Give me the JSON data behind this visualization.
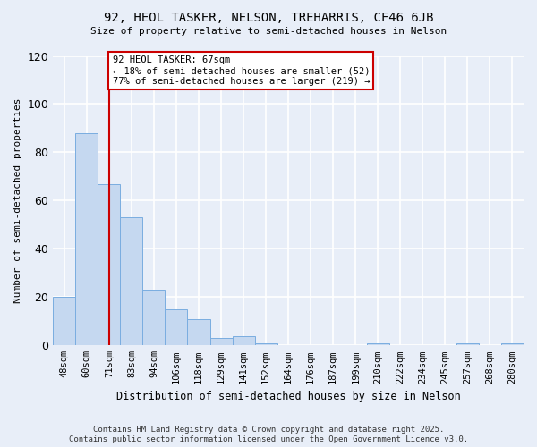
{
  "title1": "92, HEOL TASKER, NELSON, TREHARRIS, CF46 6JB",
  "title2": "Size of property relative to semi-detached houses in Nelson",
  "xlabel": "Distribution of semi-detached houses by size in Nelson",
  "ylabel": "Number of semi-detached properties",
  "categories": [
    "48sqm",
    "60sqm",
    "71sqm",
    "83sqm",
    "94sqm",
    "106sqm",
    "118sqm",
    "129sqm",
    "141sqm",
    "152sqm",
    "164sqm",
    "176sqm",
    "187sqm",
    "199sqm",
    "210sqm",
    "222sqm",
    "234sqm",
    "245sqm",
    "257sqm",
    "268sqm",
    "280sqm"
  ],
  "values": [
    20,
    88,
    67,
    53,
    23,
    15,
    11,
    3,
    4,
    1,
    0,
    0,
    0,
    0,
    1,
    0,
    0,
    0,
    1,
    0,
    1
  ],
  "bar_color": "#c5d8f0",
  "bar_edge_color": "#7aade0",
  "highlight_index": 2,
  "vline_color": "#cc0000",
  "annotation_text": "92 HEOL TASKER: 67sqm\n← 18% of semi-detached houses are smaller (52)\n77% of semi-detached houses are larger (219) →",
  "annotation_box_color": "#ffffff",
  "annotation_box_edge_color": "#cc0000",
  "ylim": [
    0,
    120
  ],
  "yticks": [
    0,
    20,
    40,
    60,
    80,
    100,
    120
  ],
  "background_color": "#e8eef8",
  "grid_color": "#ffffff",
  "footer1": "Contains HM Land Registry data © Crown copyright and database right 2025.",
  "footer2": "Contains public sector information licensed under the Open Government Licence v3.0."
}
